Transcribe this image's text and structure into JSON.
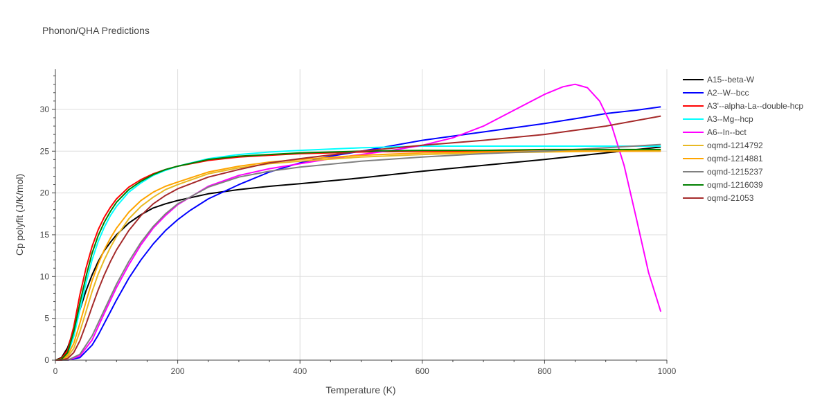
{
  "chart_data": {
    "type": "line",
    "title": "Phonon/QHA Predictions",
    "xlabel": "Temperature (K)",
    "ylabel": "Cp polyfit (J/K/mol)",
    "xlim": [
      0,
      1000
    ],
    "ylim": [
      0,
      34.8
    ],
    "xticks": [
      0,
      200,
      400,
      600,
      800,
      1000
    ],
    "yticks": [
      0,
      5,
      10,
      15,
      20,
      25,
      30
    ],
    "grid": true,
    "legend_position": "top-right",
    "series": [
      {
        "name": "A15--beta-W",
        "color": "#000000",
        "x": [
          0,
          10,
          20,
          30,
          40,
          50,
          60,
          70,
          80,
          90,
          100,
          120,
          140,
          160,
          180,
          200,
          250,
          300,
          350,
          400,
          500,
          600,
          700,
          800,
          900,
          990
        ],
        "y": [
          0,
          0.3,
          1.5,
          3.6,
          6.0,
          8.3,
          10.2,
          11.8,
          13.1,
          14.1,
          15.0,
          16.4,
          17.4,
          18.2,
          18.7,
          19.1,
          19.9,
          20.4,
          20.8,
          21.1,
          21.8,
          22.6,
          23.3,
          24.0,
          24.8,
          25.5
        ]
      },
      {
        "name": "A2--W--bcc",
        "color": "#0000ff",
        "x": [
          0,
          20,
          40,
          60,
          70,
          80,
          90,
          100,
          120,
          140,
          160,
          180,
          200,
          220,
          250,
          300,
          350,
          400,
          450,
          500,
          600,
          700,
          800,
          860,
          900,
          950,
          990
        ],
        "y": [
          0,
          0,
          0.3,
          1.8,
          3.0,
          4.4,
          5.8,
          7.2,
          9.8,
          12.0,
          13.9,
          15.5,
          16.8,
          17.9,
          19.3,
          21.0,
          22.5,
          23.6,
          24.4,
          25.0,
          26.3,
          27.3,
          28.3,
          29.0,
          29.5,
          29.9,
          30.3
        ]
      },
      {
        "name": "A3'--alpha-La--double-hcp",
        "color": "#ff0000",
        "x": [
          0,
          10,
          20,
          30,
          40,
          50,
          60,
          70,
          80,
          90,
          100,
          120,
          140,
          160,
          180,
          200,
          250,
          300,
          350,
          400,
          500,
          600,
          700,
          800,
          900,
          990
        ],
        "y": [
          0,
          0.2,
          1.2,
          4.0,
          7.8,
          11.0,
          13.6,
          15.6,
          17.1,
          18.3,
          19.3,
          20.7,
          21.6,
          22.3,
          22.8,
          23.2,
          23.9,
          24.3,
          24.5,
          24.7,
          24.9,
          25.0,
          25.0,
          25.0,
          25.0,
          25.0
        ]
      },
      {
        "name": "A3--Mg--hcp",
        "color": "#00ffff",
        "x": [
          0,
          10,
          20,
          30,
          40,
          50,
          60,
          70,
          80,
          90,
          100,
          120,
          140,
          160,
          180,
          200,
          250,
          300,
          350,
          400,
          500,
          600,
          700,
          800,
          900,
          990
        ],
        "y": [
          0,
          0.1,
          0.7,
          2.8,
          6.0,
          9.2,
          12.0,
          14.2,
          15.9,
          17.3,
          18.4,
          20.1,
          21.2,
          22.1,
          22.7,
          23.2,
          24.1,
          24.6,
          24.9,
          25.1,
          25.4,
          25.6,
          25.6,
          25.6,
          25.6,
          25.6
        ]
      },
      {
        "name": "A6--In--bct",
        "color": "#ff00ff",
        "x": [
          0,
          20,
          40,
          60,
          80,
          100,
          120,
          140,
          160,
          180,
          200,
          250,
          300,
          350,
          400,
          450,
          500,
          550,
          600,
          650,
          700,
          750,
          800,
          830,
          850,
          870,
          890,
          910,
          930,
          950,
          970,
          990
        ],
        "y": [
          0,
          0,
          0.5,
          2.4,
          5.6,
          8.7,
          11.4,
          13.8,
          15.8,
          17.3,
          18.6,
          20.8,
          22.1,
          22.9,
          23.5,
          24.1,
          24.6,
          25.1,
          25.7,
          26.6,
          28.0,
          29.9,
          31.8,
          32.7,
          33.0,
          32.6,
          31.0,
          28.0,
          23.3,
          17.0,
          10.5,
          5.8
        ]
      },
      {
        "name": "oqmd-1214792",
        "color": "#e8b923",
        "x": [
          0,
          10,
          20,
          30,
          40,
          50,
          60,
          70,
          80,
          90,
          100,
          120,
          140,
          160,
          180,
          200,
          250,
          300,
          350,
          400,
          500,
          600,
          700,
          800,
          900,
          990
        ],
        "y": [
          0,
          0.1,
          0.4,
          1.4,
          3.4,
          5.8,
          8.2,
          10.3,
          12.0,
          13.5,
          14.8,
          16.9,
          18.4,
          19.5,
          20.4,
          21.0,
          22.3,
          23.0,
          23.5,
          23.8,
          24.3,
          24.6,
          24.8,
          24.9,
          25.0,
          25.0
        ]
      },
      {
        "name": "oqmd-1214881",
        "color": "#ffa500",
        "x": [
          0,
          10,
          20,
          30,
          40,
          50,
          60,
          70,
          80,
          90,
          100,
          120,
          140,
          160,
          180,
          200,
          250,
          300,
          350,
          400,
          500,
          600,
          700,
          800,
          900,
          990
        ],
        "y": [
          0,
          0.1,
          0.6,
          2.0,
          4.4,
          7.0,
          9.5,
          11.5,
          13.2,
          14.6,
          15.8,
          17.7,
          19.1,
          20.1,
          20.8,
          21.3,
          22.5,
          23.2,
          23.7,
          24.0,
          24.5,
          24.8,
          24.9,
          25.0,
          25.0,
          25.1
        ]
      },
      {
        "name": "oqmd-1215237",
        "color": "#808080",
        "x": [
          0,
          20,
          40,
          60,
          80,
          100,
          120,
          140,
          160,
          180,
          200,
          250,
          300,
          350,
          400,
          500,
          600,
          700,
          800,
          900,
          990
        ],
        "y": [
          0,
          0,
          0.7,
          2.9,
          6.0,
          9.1,
          11.8,
          14.1,
          16.0,
          17.5,
          18.7,
          20.7,
          21.9,
          22.6,
          23.1,
          23.8,
          24.3,
          24.7,
          25.0,
          25.4,
          25.8
        ]
      },
      {
        "name": "oqmd-1216039",
        "color": "#008000",
        "x": [
          0,
          10,
          20,
          30,
          40,
          50,
          60,
          70,
          80,
          90,
          100,
          120,
          140,
          160,
          180,
          200,
          250,
          300,
          350,
          400,
          500,
          600,
          700,
          800,
          900,
          990
        ],
        "y": [
          0,
          0.1,
          0.9,
          3.4,
          6.8,
          10.0,
          12.8,
          14.9,
          16.5,
          17.8,
          18.9,
          20.4,
          21.4,
          22.2,
          22.8,
          23.2,
          24.0,
          24.4,
          24.6,
          24.8,
          25.0,
          25.1,
          25.1,
          25.2,
          25.2,
          25.2
        ]
      },
      {
        "name": "oqmd-21053",
        "color": "#a52a2a",
        "x": [
          0,
          10,
          20,
          30,
          40,
          50,
          60,
          70,
          80,
          90,
          100,
          120,
          140,
          160,
          180,
          200,
          250,
          300,
          350,
          400,
          500,
          600,
          700,
          800,
          900,
          990
        ],
        "y": [
          0,
          0,
          0.2,
          0.9,
          2.3,
          4.3,
          6.4,
          8.4,
          10.2,
          11.8,
          13.2,
          15.5,
          17.3,
          18.7,
          19.7,
          20.5,
          21.9,
          22.8,
          23.6,
          24.1,
          25.0,
          25.7,
          26.3,
          27.0,
          28.0,
          29.2
        ]
      }
    ]
  }
}
